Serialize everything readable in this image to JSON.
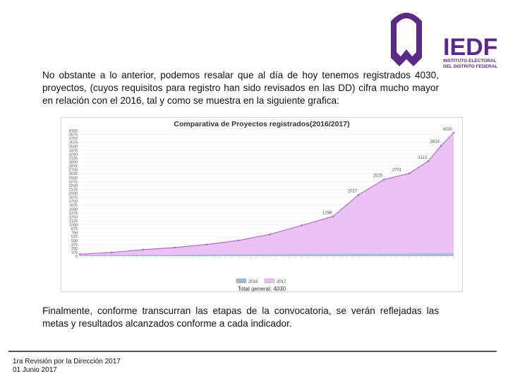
{
  "logo": {
    "brand": "IEDF",
    "line1": "INSTITUTO ELECTORAL",
    "line2": "DEL DISTRITO FEDERAL",
    "color": "#5b2a86"
  },
  "body": {
    "paragraph1": "No obstante a lo anterior, podemos resalar que al día de hoy tenemos registrados 4030, proyectos, (cuyos requisitos para registro han sido revisados en las DD) cifra mucho mayor en relación con el 2016, tal y  como se muestra en la siguiente grafica:",
    "paragraph2": "Finalmente, conforme transcurran las etapas de la convocatoria, se verán reflejadas las metas y resultados alcanzados conforme a cada indicador."
  },
  "footer": {
    "line1": "1ra Revisión por la Dirección 2017",
    "line2": "01 Junio 2017"
  },
  "chart_data": {
    "type": "area",
    "title": "Comparativa de Proyectos registrados(2016/2017)",
    "subtitle": "Total general: 4030",
    "ylim": [
      0,
      4100
    ],
    "y_ticks": [
      "4100",
      "3875",
      "3750",
      "3625",
      "3500",
      "3375",
      "3250",
      "3125",
      "3000",
      "2875",
      "2750",
      "2625",
      "2500",
      "2375",
      "2250",
      "2125",
      "2000",
      "1875",
      "1750",
      "1625",
      "1500",
      "1375",
      "1250",
      "1125",
      "1000",
      "875",
      "750",
      "625",
      "500",
      "375",
      "250",
      "125",
      "0"
    ],
    "colors": {
      "s2016": "#9bb7d4",
      "s2017": "#e8bbf2",
      "s2017_line": "#b070c8"
    },
    "series": [
      {
        "name": "2016",
        "x": [
          0,
          10,
          20,
          30,
          40,
          50,
          59
        ],
        "values": [
          30,
          40,
          50,
          60,
          70,
          80,
          95
        ]
      },
      {
        "name": "2017",
        "x": [
          0,
          5,
          10,
          15,
          20,
          25,
          30,
          35,
          40,
          44,
          48,
          52,
          55,
          57,
          59
        ],
        "values": [
          60,
          120,
          210,
          280,
          380,
          510,
          710,
          1000,
          1300,
          2000,
          2500,
          2700,
          3100,
          3600,
          4030
        ],
        "labels": [
          {
            "x": 40,
            "y": 1298,
            "text": "1298"
          },
          {
            "x": 44,
            "y": 2017,
            "text": "2017"
          },
          {
            "x": 48,
            "y": 2525,
            "text": "2525"
          },
          {
            "x": 51,
            "y": 2701,
            "text": "2701"
          },
          {
            "x": 55,
            "y": 3113,
            "text": "3113"
          },
          {
            "x": 57,
            "y": 3624,
            "text": "3624"
          },
          {
            "x": 59,
            "y": 4030,
            "text": "4030"
          }
        ]
      }
    ],
    "legend": [
      "2016",
      "2017"
    ],
    "legend_position": "bottom",
    "grid": true
  }
}
